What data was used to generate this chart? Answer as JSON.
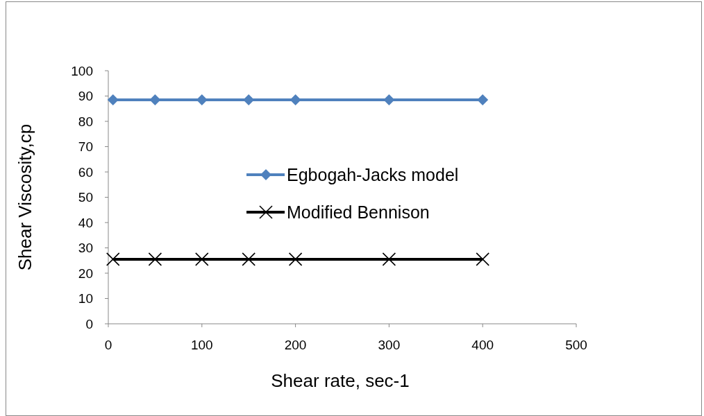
{
  "chart_data": {
    "type": "line",
    "xlabel": "Shear rate, sec-1",
    "ylabel": "Shear Viscosity,cp",
    "x": [
      5,
      50,
      100,
      150,
      200,
      300,
      400
    ],
    "series": [
      {
        "name": "Egbogah-Jacks model",
        "color": "#4f81bd",
        "marker": "diamond",
        "values": [
          88.5,
          88.5,
          88.5,
          88.5,
          88.5,
          88.5,
          88.5
        ]
      },
      {
        "name": "Modified Bennison",
        "color": "#000000",
        "marker": "cross",
        "values": [
          25.5,
          25.5,
          25.5,
          25.5,
          25.5,
          25.5,
          25.5
        ]
      }
    ],
    "xlim": [
      0,
      500
    ],
    "xticks": [
      0,
      100,
      200,
      300,
      400,
      500
    ],
    "ylim": [
      0,
      100
    ],
    "yticks": [
      0,
      10,
      20,
      30,
      40,
      50,
      60,
      70,
      80,
      90,
      100
    ],
    "grid": false,
    "legend": "right"
  }
}
